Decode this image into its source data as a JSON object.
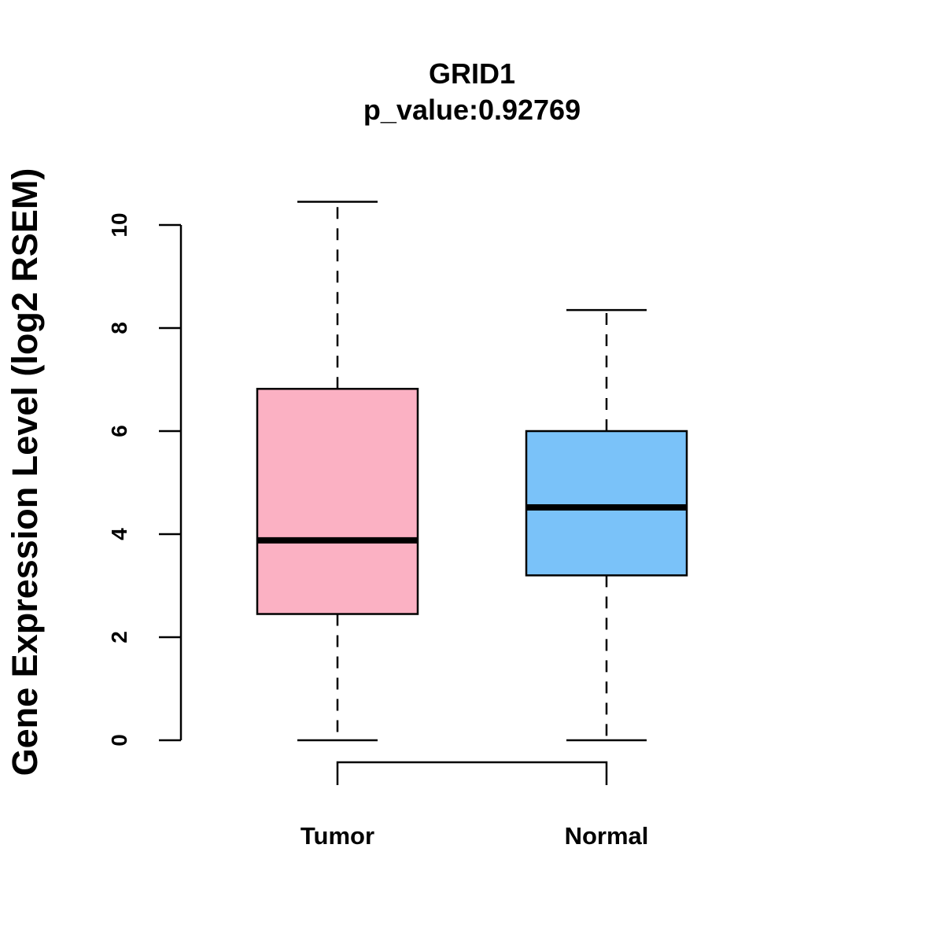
{
  "chart_data": {
    "type": "box",
    "title": "GRID1",
    "subtitle": "p_value:0.92769",
    "xlabel": "",
    "ylabel": "Gene Expression Level (log2 RSEM)",
    "ylim": [
      0,
      10
    ],
    "yticks": [
      "0",
      "2",
      "4",
      "6",
      "8",
      "10"
    ],
    "grid": false,
    "series": [
      {
        "name": "Tumor",
        "color": "#FBB1C3",
        "whisker_low": 0,
        "q1": 2.45,
        "median": 3.88,
        "q3": 6.82,
        "whisker_high": 10.45
      },
      {
        "name": "Normal",
        "color": "#7AC2F9",
        "whisker_low": 0,
        "q1": 3.2,
        "median": 4.52,
        "q3": 6.0,
        "whisker_high": 8.35
      }
    ],
    "comparison_bracket": [
      "Tumor",
      "Normal"
    ]
  }
}
